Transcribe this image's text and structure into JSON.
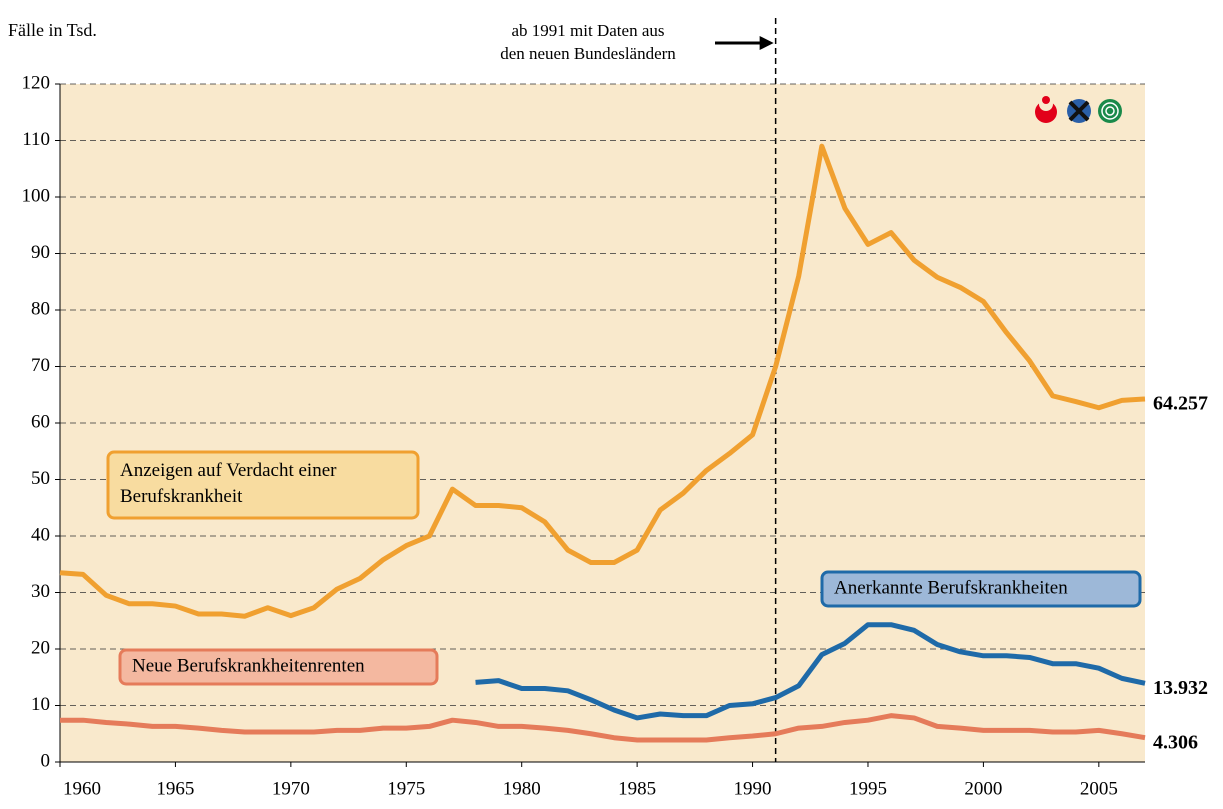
{
  "chart_data": {
    "type": "line",
    "ylabel": "Fälle in Tsd.",
    "x": [
      1960,
      1961,
      1962,
      1963,
      1964,
      1965,
      1966,
      1967,
      1968,
      1969,
      1970,
      1971,
      1972,
      1973,
      1974,
      1975,
      1976,
      1977,
      1978,
      1979,
      1980,
      1981,
      1982,
      1983,
      1984,
      1985,
      1986,
      1987,
      1988,
      1989,
      1990,
      1991,
      1992,
      1993,
      1994,
      1995,
      1996,
      1997,
      1998,
      1999,
      2000,
      2001,
      2002,
      2003,
      2004,
      2005,
      2006,
      2007
    ],
    "xlim": [
      1960,
      2007
    ],
    "xticks": [
      1960,
      1965,
      1970,
      1975,
      1980,
      1985,
      1990,
      1995,
      2000,
      2005
    ],
    "ylim": [
      0,
      120
    ],
    "yticks": [
      0,
      10,
      20,
      30,
      40,
      50,
      60,
      70,
      80,
      90,
      100,
      110,
      120
    ],
    "grid": true,
    "annotation": {
      "text": [
        "ab 1991 mit Daten aus",
        "den neuen Bundesländern"
      ],
      "x": 1991
    },
    "series": [
      {
        "name": "Anzeigen auf Verdacht einer Berufskrankheit",
        "color": "#f0a030",
        "box_fill": "#f8dca0",
        "values": [
          33.5,
          33.2,
          29.5,
          28,
          28,
          27.6,
          26.2,
          26.2,
          25.8,
          27.3,
          25.9,
          27.3,
          30.6,
          32.5,
          35.8,
          38.3,
          40,
          48.3,
          45.4,
          45.4,
          45,
          42.5,
          37.5,
          35.3,
          35.3,
          37.5,
          44.6,
          47.6,
          51.6,
          54.6,
          57.9,
          70,
          86,
          109,
          98,
          91.6,
          93.7,
          88.8,
          85.8,
          84,
          81.5,
          76,
          71,
          64.8,
          63.8,
          62.7,
          64,
          64.257
        ],
        "end_label": "64.257"
      },
      {
        "name": "Anerkannte Berufskrankheiten",
        "color": "#1f6aa8",
        "box_fill": "#9db8d8",
        "values": [
          null,
          null,
          null,
          null,
          null,
          null,
          null,
          null,
          null,
          null,
          null,
          null,
          null,
          null,
          null,
          null,
          null,
          null,
          14.1,
          14.4,
          13,
          13,
          12.6,
          11,
          9.2,
          7.8,
          8.5,
          8.2,
          8.2,
          10,
          10.3,
          11.4,
          13.5,
          19,
          21,
          24.3,
          24.3,
          23.3,
          20.8,
          19.5,
          18.8,
          18.8,
          18.5,
          17.4,
          17.4,
          16.6,
          14.8,
          13.932
        ],
        "end_label": "13.932"
      },
      {
        "name": "Neue Berufskrankheitenrenten",
        "color": "#e57b5a",
        "box_fill": "#f4b8a0",
        "values": [
          7.4,
          7.4,
          7,
          6.7,
          6.3,
          6.3,
          6,
          5.6,
          5.3,
          5.3,
          5.3,
          5.3,
          5.6,
          5.6,
          6,
          6,
          6.3,
          7.4,
          7,
          6.3,
          6.3,
          6,
          5.6,
          5,
          4.3,
          3.9,
          3.9,
          3.9,
          3.9,
          4.3,
          4.6,
          5,
          6,
          6.3,
          7,
          7.4,
          8.2,
          7.8,
          6.3,
          6,
          5.6,
          5.6,
          5.6,
          5.3,
          5.3,
          5.6,
          5,
          4.306
        ],
        "end_label": "4.306"
      }
    ]
  }
}
